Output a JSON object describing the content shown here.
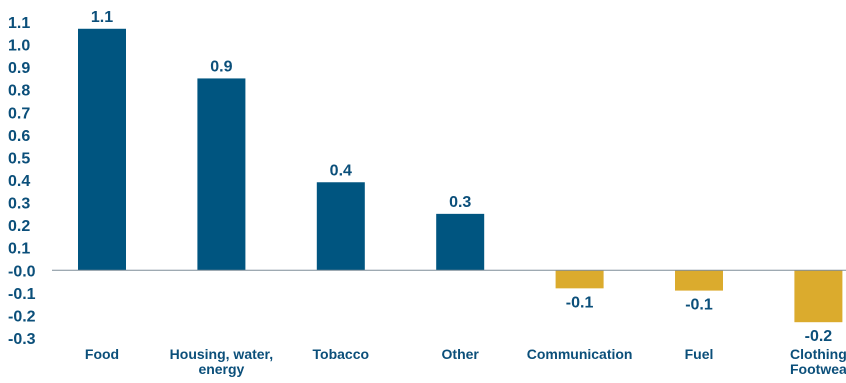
{
  "chart_data": {
    "type": "bar",
    "title": "",
    "xlabel": "",
    "ylabel": "",
    "categories": [
      "Food",
      "Housing, water, energy",
      "Tobacco",
      "Other",
      "Communication",
      "Fuel",
      "Clothing Footwea"
    ],
    "category_lines": [
      [
        "Food"
      ],
      [
        "Housing, water,",
        "energy"
      ],
      [
        "Tobacco"
      ],
      [
        "Other"
      ],
      [
        "Communication"
      ],
      [
        "Fuel"
      ],
      [
        "Clothing",
        "Footwea"
      ]
    ],
    "values": [
      1.07,
      0.85,
      0.39,
      0.25,
      -0.08,
      -0.09,
      -0.23
    ],
    "data_labels": [
      "1.1",
      "0.9",
      "0.4",
      "0.3",
      "-0.1",
      "-0.1",
      "-0.2"
    ],
    "ylim": [
      -0.3,
      1.1
    ],
    "yticks": [
      "1.1",
      "1.0",
      "0.9",
      "0.8",
      "0.7",
      "0.6",
      "0.5",
      "0.4",
      "0.3",
      "0.2",
      "0.1",
      "-0.0",
      "-0.1",
      "-0.2",
      "-0.3"
    ],
    "ytick_values": [
      1.1,
      1.0,
      0.9,
      0.8,
      0.7,
      0.6,
      0.5,
      0.4,
      0.3,
      0.2,
      0.1,
      0.0,
      -0.1,
      -0.2,
      -0.3
    ],
    "grid": false,
    "colors": {
      "positive": "#005580",
      "negative": "#dbab2d",
      "text": "#0b4f7a",
      "axis": "#7f8d99"
    }
  }
}
